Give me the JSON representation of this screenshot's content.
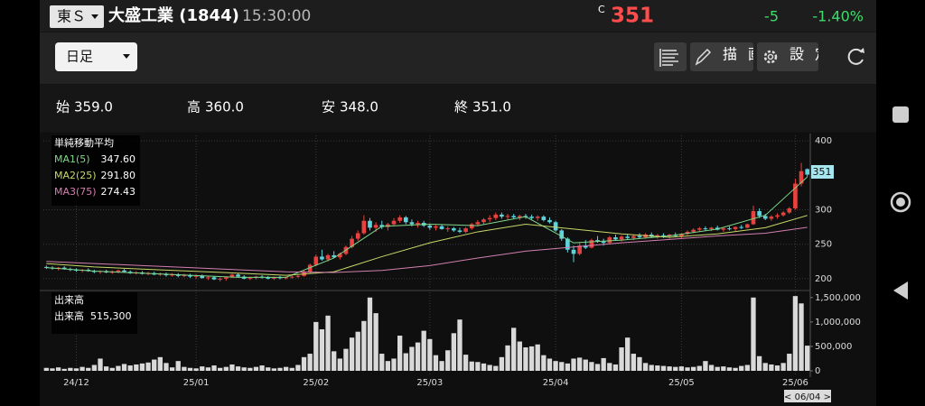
{
  "header": {
    "exchange": "東Ｓ",
    "name": "大盛工業 (1844)",
    "time": "15:30:00",
    "price_flag": "C",
    "price": "351",
    "change": "-5",
    "change_pct": "-1.40%"
  },
  "toolbar": {
    "period": "日足",
    "draw": "描画",
    "settings": "設定"
  },
  "ohlc": [
    {
      "label": "始",
      "value": "359.0"
    },
    {
      "label": "高",
      "value": "360.0"
    },
    {
      "label": "安",
      "value": "348.0"
    },
    {
      "label": "終",
      "value": "351.0"
    }
  ],
  "cursor_date": "< 06/04 >",
  "chart_data": [
    {
      "type": "candlestick",
      "legend_title": "単純移動平均",
      "up_color": "#e8413e",
      "down_color": "#5fd3dc",
      "ylim": [
        192,
        408
      ],
      "yticks": [
        200,
        250,
        300,
        400
      ],
      "grid": true,
      "candles": [
        [
          217,
          219,
          214,
          216
        ],
        [
          216,
          218,
          213,
          215
        ],
        [
          215,
          217,
          212,
          216
        ],
        [
          216,
          218,
          213,
          214
        ],
        [
          214,
          216,
          211,
          213
        ],
        [
          213,
          215,
          210,
          212
        ],
        [
          212,
          214,
          209,
          213
        ],
        [
          213,
          215,
          210,
          211
        ],
        [
          211,
          213,
          208,
          210
        ],
        [
          210,
          212,
          207,
          211
        ],
        [
          211,
          213,
          208,
          209
        ],
        [
          209,
          212,
          207,
          210
        ],
        [
          210,
          213,
          208,
          212
        ],
        [
          212,
          214,
          209,
          210
        ],
        [
          210,
          212,
          207,
          208
        ],
        [
          208,
          211,
          206,
          209
        ],
        [
          209,
          211,
          206,
          207
        ],
        [
          207,
          210,
          205,
          208
        ],
        [
          208,
          210,
          205,
          206
        ],
        [
          206,
          209,
          204,
          207
        ],
        [
          207,
          209,
          203,
          205
        ],
        [
          205,
          208,
          203,
          206
        ],
        [
          206,
          208,
          202,
          204
        ],
        [
          204,
          207,
          202,
          205
        ],
        [
          205,
          207,
          201,
          203
        ],
        [
          203,
          206,
          200,
          204
        ],
        [
          204,
          206,
          200,
          201
        ],
        [
          201,
          204,
          198,
          202
        ],
        [
          202,
          204,
          198,
          199
        ],
        [
          199,
          202,
          196,
          200
        ],
        [
          200,
          203,
          197,
          202
        ],
        [
          202,
          207,
          201,
          206
        ],
        [
          206,
          208,
          202,
          203
        ],
        [
          203,
          205,
          199,
          200
        ],
        [
          200,
          203,
          198,
          201
        ],
        [
          201,
          204,
          199,
          203
        ],
        [
          203,
          205,
          200,
          202
        ],
        [
          202,
          204,
          199,
          200
        ],
        [
          200,
          203,
          198,
          202
        ],
        [
          202,
          204,
          199,
          201
        ],
        [
          201,
          203,
          199,
          202
        ],
        [
          202,
          205,
          200,
          203
        ],
        [
          203,
          206,
          201,
          204
        ],
        [
          204,
          212,
          203,
          210
        ],
        [
          210,
          222,
          208,
          220
        ],
        [
          220,
          235,
          218,
          232
        ],
        [
          232,
          242,
          226,
          228
        ],
        [
          228,
          236,
          225,
          234
        ],
        [
          234,
          240,
          230,
          231
        ],
        [
          231,
          238,
          228,
          236
        ],
        [
          236,
          248,
          234,
          246
        ],
        [
          246,
          262,
          244,
          258
        ],
        [
          258,
          270,
          255,
          266
        ],
        [
          266,
          292,
          264,
          284
        ],
        [
          284,
          288,
          270,
          274
        ],
        [
          274,
          282,
          268,
          278
        ],
        [
          278,
          284,
          272,
          275
        ],
        [
          275,
          281,
          270,
          279
        ],
        [
          279,
          288,
          276,
          284
        ],
        [
          284,
          292,
          281,
          289
        ],
        [
          289,
          291,
          279,
          282
        ],
        [
          282,
          286,
          276,
          279
        ],
        [
          279,
          284,
          274,
          281
        ],
        [
          281,
          284,
          275,
          277
        ],
        [
          277,
          280,
          271,
          274
        ],
        [
          274,
          278,
          270,
          276
        ],
        [
          276,
          279,
          271,
          272
        ],
        [
          272,
          276,
          268,
          273
        ],
        [
          273,
          275,
          268,
          270
        ],
        [
          270,
          274,
          266,
          268
        ],
        [
          268,
          275,
          266,
          273
        ],
        [
          273,
          281,
          271,
          279
        ],
        [
          279,
          285,
          276,
          282
        ],
        [
          282,
          288,
          279,
          286
        ],
        [
          286,
          292,
          282,
          288
        ],
        [
          288,
          296,
          285,
          293
        ],
        [
          293,
          296,
          287,
          290
        ],
        [
          290,
          294,
          286,
          291
        ],
        [
          291,
          294,
          287,
          289
        ],
        [
          289,
          293,
          285,
          291
        ],
        [
          291,
          294,
          287,
          290
        ],
        [
          290,
          293,
          286,
          288
        ],
        [
          288,
          292,
          284,
          290
        ],
        [
          290,
          292,
          283,
          285
        ],
        [
          285,
          289,
          280,
          282
        ],
        [
          282,
          284,
          268,
          270
        ],
        [
          270,
          272,
          255,
          258
        ],
        [
          258,
          260,
          238,
          242
        ],
        [
          242,
          248,
          224,
          236
        ],
        [
          236,
          252,
          234,
          248
        ],
        [
          248,
          256,
          243,
          245
        ],
        [
          245,
          258,
          244,
          256
        ],
        [
          256,
          262,
          252,
          254
        ],
        [
          254,
          258,
          248,
          252
        ],
        [
          252,
          262,
          250,
          260
        ],
        [
          260,
          264,
          255,
          257
        ],
        [
          257,
          263,
          254,
          261
        ],
        [
          261,
          265,
          257,
          259
        ],
        [
          259,
          264,
          256,
          262
        ],
        [
          262,
          266,
          258,
          260
        ],
        [
          260,
          266,
          258,
          264
        ],
        [
          264,
          267,
          259,
          261
        ],
        [
          261,
          265,
          258,
          263
        ],
        [
          263,
          266,
          259,
          262
        ],
        [
          262,
          265,
          258,
          264
        ],
        [
          264,
          267,
          260,
          262
        ],
        [
          262,
          266,
          259,
          265
        ],
        [
          265,
          270,
          263,
          268
        ],
        [
          268,
          273,
          266,
          271
        ],
        [
          271,
          275,
          268,
          273
        ],
        [
          273,
          276,
          270,
          272
        ],
        [
          272,
          275,
          269,
          274
        ],
        [
          274,
          277,
          270,
          271
        ],
        [
          271,
          274,
          268,
          273
        ],
        [
          273,
          276,
          270,
          272
        ],
        [
          272,
          276,
          269,
          275
        ],
        [
          275,
          278,
          272,
          274
        ],
        [
          274,
          280,
          273,
          279
        ],
        [
          279,
          306,
          278,
          298
        ],
        [
          298,
          302,
          288,
          291
        ],
        [
          291,
          294,
          285,
          287
        ],
        [
          287,
          292,
          284,
          290
        ],
        [
          290,
          295,
          287,
          292
        ],
        [
          292,
          298,
          290,
          296
        ],
        [
          296,
          304,
          294,
          302
        ],
        [
          302,
          345,
          300,
          338
        ],
        [
          338,
          368,
          334,
          356
        ],
        [
          359,
          360,
          348,
          351
        ]
      ],
      "series": [
        {
          "name": "MA1(5)",
          "color": "#7fd88a",
          "x": [
            0,
            8,
            16,
            24,
            32,
            40,
            48,
            56,
            64,
            72,
            80,
            88,
            96,
            104,
            112,
            120,
            127
          ],
          "values": [
            216,
            211,
            208,
            205,
            202,
            202,
            230,
            276,
            279,
            277,
            290,
            252,
            256,
            262,
            272,
            292,
            347.6
          ],
          "current": {
            "value": 347.6,
            "label": "347.60"
          }
        },
        {
          "name": "MA2(25)",
          "color": "#c8d86a",
          "x": [
            0,
            8,
            16,
            24,
            32,
            40,
            48,
            56,
            64,
            72,
            80,
            88,
            96,
            104,
            112,
            120,
            127
          ],
          "values": [
            222,
            217,
            214,
            211,
            208,
            205,
            210,
            232,
            252,
            268,
            279,
            272,
            265,
            260,
            265,
            274,
            291.8
          ],
          "current": {
            "value": 291.8,
            "label": "291.80"
          }
        },
        {
          "name": "MA3(75)",
          "color": "#d27fb0",
          "x": [
            0,
            8,
            16,
            24,
            32,
            40,
            48,
            56,
            64,
            72,
            80,
            88,
            96,
            104,
            112,
            120,
            127
          ],
          "values": [
            225,
            222,
            219,
            216,
            213,
            210,
            209,
            212,
            219,
            230,
            240,
            246,
            252,
            257,
            262,
            266,
            274.43
          ],
          "current": {
            "value": 274.43,
            "label": "274.43"
          }
        }
      ]
    },
    {
      "type": "bar",
      "title": "出来高",
      "color": "#d9d9d9",
      "ylim": [
        0,
        1570000
      ],
      "yticks": [
        0,
        {
          "value": 500000,
          "label": "500,000"
        },
        {
          "value": 1000000,
          "label": "1,000,000"
        },
        {
          "value": 1500000,
          "label": "1,500,000"
        }
      ],
      "current": {
        "value": 515300,
        "label": "出来高  515,300"
      },
      "xticks": [
        {
          "value": 5,
          "label": "24/12"
        },
        {
          "value": 25,
          "label": "25/01"
        },
        {
          "value": 45,
          "label": "25/02"
        },
        {
          "value": 64,
          "label": "25/03"
        },
        {
          "value": 85,
          "label": "25/04"
        },
        {
          "value": 106,
          "label": "25/05"
        },
        {
          "value": 125,
          "label": "25/06"
        }
      ],
      "values": [
        60000,
        50000,
        70000,
        40000,
        60000,
        50000,
        80000,
        60000,
        120000,
        250000,
        90000,
        60000,
        100000,
        140000,
        110000,
        130000,
        150000,
        170000,
        230000,
        280000,
        160000,
        70000,
        200000,
        80000,
        60000,
        50000,
        90000,
        70000,
        110000,
        60000,
        80000,
        130000,
        90000,
        70000,
        60000,
        80000,
        110000,
        70000,
        50000,
        60000,
        80000,
        60000,
        120000,
        280000,
        350000,
        1000000,
        850000,
        1130000,
        400000,
        250000,
        450000,
        680000,
        800000,
        1020000,
        1500000,
        1180000,
        350000,
        200000,
        250000,
        720000,
        360000,
        490000,
        580000,
        820000,
        650000,
        320000,
        200000,
        420000,
        770000,
        1050000,
        330000,
        190000,
        180000,
        150000,
        120000,
        100000,
        280000,
        520000,
        880000,
        600000,
        480000,
        500000,
        540000,
        320000,
        250000,
        200000,
        180000,
        150000,
        250000,
        270000,
        230000,
        180000,
        140000,
        260000,
        160000,
        130000,
        480000,
        680000,
        350000,
        280000,
        160000,
        120000,
        110000,
        100000,
        90000,
        80000,
        90000,
        70000,
        80000,
        100000,
        200000,
        120000,
        80000,
        90000,
        70000,
        60000,
        100000,
        120000,
        1500000,
        300000,
        160000,
        130000,
        110000,
        160000,
        350000,
        1530000,
        1380000,
        515300
      ]
    }
  ]
}
